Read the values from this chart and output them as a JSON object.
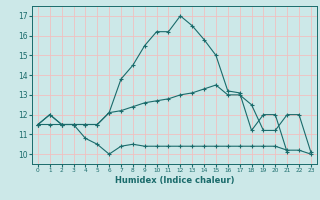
{
  "xlabel": "Humidex (Indice chaleur)",
  "bg_color": "#cce8e8",
  "line_color": "#1a6b6b",
  "grid_color": "#f0c0c0",
  "xlim": [
    -0.5,
    23.5
  ],
  "ylim": [
    9.5,
    17.5
  ],
  "yticks": [
    10,
    11,
    12,
    13,
    14,
    15,
    16,
    17
  ],
  "xticks": [
    0,
    1,
    2,
    3,
    4,
    5,
    6,
    7,
    8,
    9,
    10,
    11,
    12,
    13,
    14,
    15,
    16,
    17,
    18,
    19,
    20,
    21,
    22,
    23
  ],
  "line1_x": [
    0,
    1,
    2,
    3,
    4,
    5,
    6,
    7,
    8,
    9,
    10,
    11,
    12,
    13,
    14,
    15,
    16,
    17,
    18,
    19,
    20,
    21,
    22,
    23
  ],
  "line1_y": [
    11.5,
    12.0,
    11.5,
    11.5,
    11.5,
    11.5,
    12.1,
    13.8,
    14.5,
    15.5,
    16.2,
    16.2,
    17.0,
    16.5,
    15.8,
    15.0,
    13.2,
    13.1,
    11.2,
    12.0,
    12.0,
    10.1,
    null,
    null
  ],
  "line2_x": [
    0,
    1,
    2,
    3,
    4,
    5,
    6,
    7,
    8,
    9,
    10,
    11,
    12,
    13,
    14,
    15,
    16,
    17,
    18,
    19,
    20,
    21,
    22,
    23
  ],
  "line2_y": [
    11.5,
    12.0,
    11.5,
    11.5,
    11.5,
    11.5,
    12.1,
    12.2,
    12.4,
    12.6,
    12.7,
    12.8,
    13.0,
    13.1,
    13.3,
    13.5,
    13.0,
    13.0,
    12.5,
    11.2,
    11.2,
    12.0,
    12.0,
    10.1
  ],
  "line3_x": [
    0,
    1,
    2,
    3,
    4,
    5,
    6,
    7,
    8,
    9,
    10,
    11,
    12,
    13,
    14,
    15,
    16,
    17,
    18,
    19,
    20,
    21,
    22,
    23
  ],
  "line3_y": [
    11.5,
    11.5,
    11.5,
    11.5,
    10.8,
    10.5,
    10.0,
    10.4,
    10.5,
    10.4,
    10.4,
    10.4,
    10.4,
    10.4,
    10.4,
    10.4,
    10.4,
    10.4,
    10.4,
    10.4,
    10.4,
    10.2,
    10.2,
    10.0
  ]
}
